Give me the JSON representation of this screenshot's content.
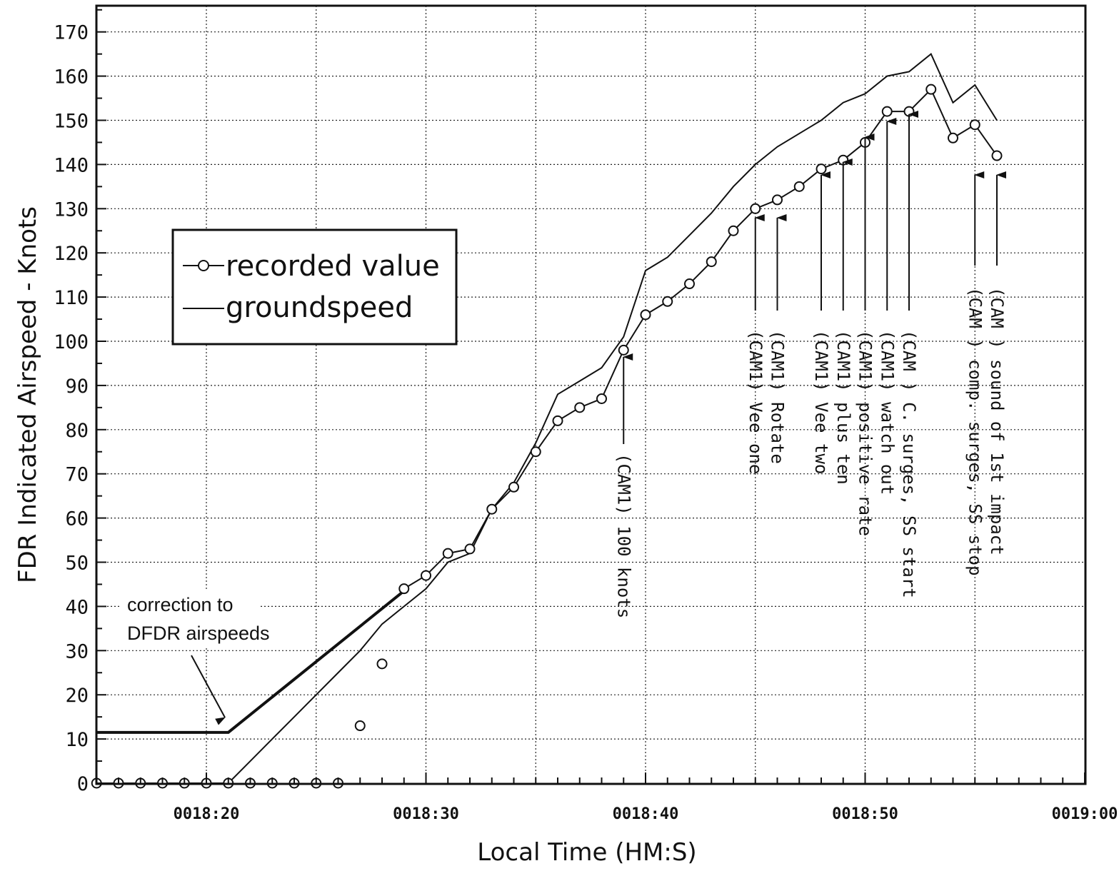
{
  "chart_data": {
    "type": "line",
    "xlabel": "Local Time (HM:S)",
    "ylabel": "FDR Indicated Airspeed - Knots",
    "xlim": [
      15,
      60
    ],
    "ylim": [
      0,
      175
    ],
    "x_unit": "seconds after 0018:00",
    "x_ticks": [
      {
        "x": 20,
        "label": "0018:20"
      },
      {
        "x": 30,
        "label": "0018:30"
      },
      {
        "x": 40,
        "label": "0018:40"
      },
      {
        "x": 50,
        "label": "0018:50"
      },
      {
        "x": 60,
        "label": "0019:00"
      }
    ],
    "y_ticks": [
      "0",
      "10",
      "20",
      "30",
      "40",
      "50",
      "60",
      "70",
      "80",
      "90",
      "100",
      "110",
      "120",
      "130",
      "140",
      "150",
      "160",
      "170"
    ],
    "grid": true,
    "legend": {
      "placement": "upper-left",
      "entries": [
        {
          "name": "recorded value",
          "marker": "circle"
        },
        {
          "name": "groundspeed",
          "marker": "line"
        }
      ]
    },
    "series": [
      {
        "name": "recorded value",
        "style": "circle-markers",
        "x": [
          15,
          16,
          17,
          18,
          19,
          20,
          21,
          22,
          23,
          24,
          25,
          26,
          27,
          28,
          29,
          30,
          31,
          32,
          33,
          34,
          35,
          36,
          37,
          38,
          39,
          40,
          41,
          42,
          43,
          44,
          45,
          46,
          47,
          48,
          49,
          50,
          51,
          52,
          53,
          54,
          55,
          56
        ],
        "y": [
          0,
          0,
          0,
          0,
          0,
          0,
          0,
          0,
          0,
          0,
          0,
          0,
          13,
          27,
          44,
          47,
          52,
          53,
          62,
          67,
          75,
          82,
          85,
          87,
          98,
          106,
          109,
          113,
          118,
          125,
          130,
          132,
          135,
          139,
          141,
          145,
          152,
          152,
          157,
          146,
          149,
          142
        ],
        "connected_from_x": 29
      },
      {
        "name": "groundspeed",
        "style": "line",
        "x": [
          15,
          21,
          22,
          23,
          24,
          25,
          26,
          27,
          28,
          29,
          30,
          31,
          32,
          33,
          34,
          35,
          36,
          37,
          38,
          39,
          40,
          41,
          42,
          43,
          44,
          45,
          46,
          47,
          48,
          49,
          50,
          51,
          52,
          53,
          54,
          55,
          56
        ],
        "y": [
          0,
          0,
          5,
          10,
          15,
          20,
          25,
          30,
          36,
          40,
          44,
          50,
          52,
          62,
          68,
          77,
          88,
          91,
          94,
          101,
          116,
          119,
          124,
          129,
          135,
          140,
          144,
          147,
          150,
          154,
          156,
          160,
          161,
          165,
          154,
          158,
          150
        ]
      },
      {
        "name": "correction to DFDR airspeeds",
        "style": "thick-line",
        "x": [
          15,
          21,
          29
        ],
        "y": [
          11.5,
          11.5,
          43.5
        ]
      }
    ],
    "annotations": [
      {
        "text": "correction to",
        "text2": "DFDR airspeeds"
      },
      {
        "x": 39,
        "text": "(CAM1) 100 knots"
      },
      {
        "x": 45,
        "text": "(CAM1) Vee one"
      },
      {
        "x": 46,
        "text": "(CAM1) Rotate"
      },
      {
        "x": 48,
        "text": "(CAM1) Vee two"
      },
      {
        "x": 49,
        "text": "(CAM1) plus ten"
      },
      {
        "x": 50,
        "text": "(CAM1) positive rate"
      },
      {
        "x": 51,
        "text": "(CAM1) watch out"
      },
      {
        "x": 52,
        "text": "(CAM ) C. surges, SS start"
      },
      {
        "x": 55,
        "text": "(CAM ) comp. surges, SS stop"
      },
      {
        "x": 56,
        "text": "(CAM ) sound of 1st impact"
      }
    ]
  }
}
